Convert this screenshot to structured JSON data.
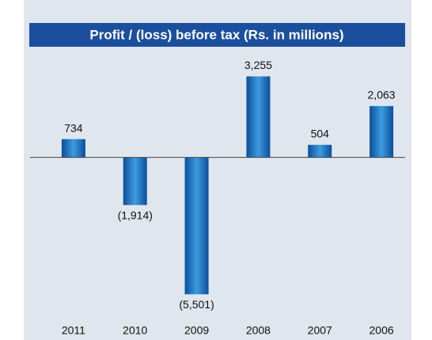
{
  "chart_data": {
    "type": "bar",
    "title": "Profit / (loss)  before tax (Rs. in millions)",
    "categories": [
      "2011",
      "2010",
      "2009",
      "2008",
      "2007",
      "2006"
    ],
    "values": [
      734,
      -1914,
      -5501,
      3255,
      504,
      2063
    ],
    "value_labels": [
      "734",
      "(1,914)",
      "(5,501)",
      "3,255",
      "504",
      "2,063"
    ],
    "color": "#1a6fc0",
    "ylim": [
      -6000,
      4000
    ]
  }
}
